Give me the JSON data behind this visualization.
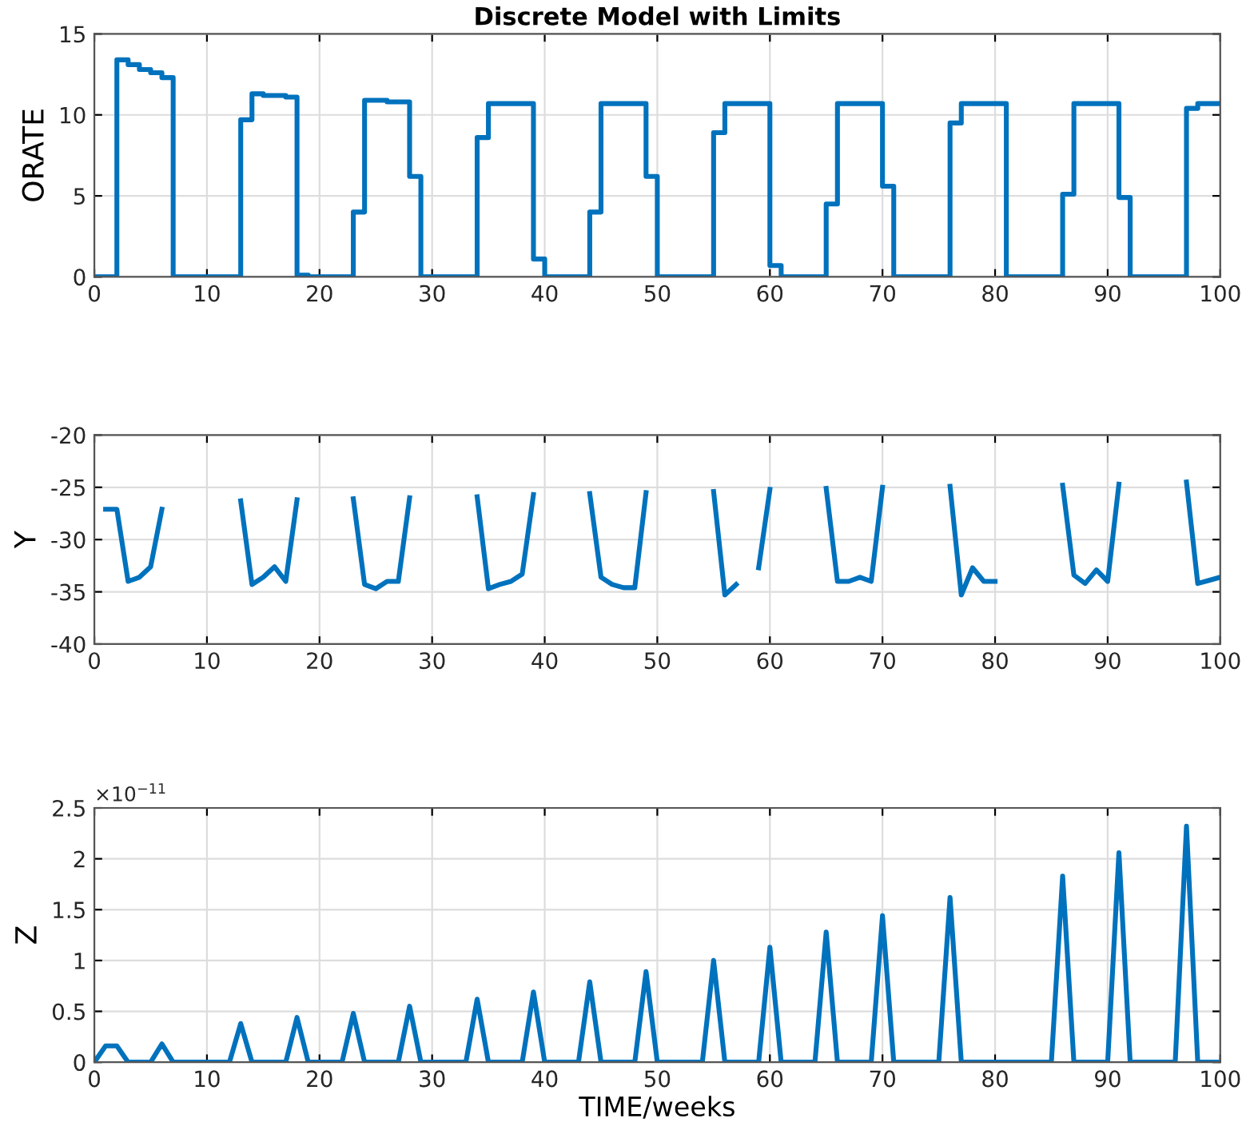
{
  "chart_data": [
    {
      "type": "step",
      "title": "Discrete Model with Limits",
      "ylabel": "ORATE",
      "x": [
        0,
        2,
        3,
        4,
        5,
        6,
        7,
        13,
        14,
        15,
        16,
        17,
        18,
        19,
        23,
        24,
        25,
        26,
        27,
        28,
        29,
        34,
        35,
        39,
        40,
        44,
        45,
        49,
        50,
        55,
        56,
        60,
        61,
        65,
        66,
        70,
        71,
        76,
        77,
        81,
        86,
        87,
        91,
        92,
        97,
        98,
        100
      ],
      "series": [
        {
          "color": "#0072bd",
          "values": [
            0,
            13.4,
            13.1,
            12.8,
            12.6,
            12.3,
            0,
            9.7,
            11.3,
            11.2,
            11.2,
            11.1,
            0.1,
            0,
            4.0,
            10.9,
            10.9,
            10.8,
            10.8,
            6.2,
            0,
            8.6,
            10.7,
            1.1,
            0,
            4.0,
            10.7,
            6.2,
            0,
            8.9,
            10.7,
            0.7,
            0,
            4.5,
            10.7,
            5.6,
            0,
            9.5,
            10.7,
            0,
            5.1,
            10.7,
            4.9,
            0,
            10.4,
            10.7,
            10.7
          ]
        }
      ],
      "xlim": [
        0,
        100
      ],
      "xticks": [
        0,
        10,
        20,
        30,
        40,
        50,
        60,
        70,
        80,
        90,
        100
      ],
      "ylim": [
        0,
        15
      ],
      "yticks": [
        0,
        5,
        10,
        15
      ],
      "grid": true
    },
    {
      "type": "line",
      "ylabel": "Y",
      "x": [
        1,
        2,
        3,
        4,
        5,
        6,
        7,
        8,
        9,
        10,
        11,
        12,
        13,
        14,
        15,
        16,
        17,
        18,
        19,
        20,
        21,
        22,
        23,
        24,
        25,
        26,
        27,
        28,
        29,
        30,
        31,
        32,
        33,
        34,
        35,
        36,
        37,
        38,
        39,
        40,
        41,
        42,
        43,
        44,
        45,
        46,
        47,
        48,
        49,
        50,
        51,
        52,
        53,
        54,
        55,
        56,
        57,
        58,
        59,
        60,
        61,
        62,
        63,
        64,
        65,
        66,
        67,
        68,
        69,
        70,
        71,
        72,
        73,
        74,
        75,
        76,
        77,
        78,
        79,
        80,
        81,
        82,
        83,
        84,
        85,
        86,
        87,
        88,
        89,
        90,
        91,
        92,
        93,
        94,
        95,
        96,
        97,
        98,
        99,
        100
      ],
      "series": [
        {
          "color": "#0072bd",
          "values": [
            -27.1,
            -27.1,
            -34.0,
            -33.6,
            -32.6,
            -27.1,
            null,
            null,
            null,
            null,
            null,
            null,
            -26.3,
            -34.3,
            -33.6,
            -32.6,
            -34.0,
            -26.2,
            null,
            null,
            null,
            null,
            -26.1,
            -34.3,
            -34.7,
            -34.0,
            -34.0,
            -26.0,
            null,
            null,
            null,
            null,
            null,
            -25.9,
            -34.7,
            -34.3,
            -34.0,
            -33.3,
            -25.7,
            null,
            null,
            null,
            null,
            -25.6,
            -33.6,
            -34.3,
            -34.6,
            -34.6,
            -25.5,
            null,
            null,
            null,
            null,
            null,
            -25.4,
            -35.3,
            -34.3,
            null,
            -32.7,
            -25.2,
            null,
            null,
            null,
            null,
            -25.1,
            -34.0,
            -34.0,
            -33.6,
            -34.0,
            -25.0,
            null,
            null,
            null,
            null,
            null,
            -24.9,
            -35.3,
            -32.7,
            -34.0,
            -34.0,
            null,
            null,
            null,
            null,
            null,
            -24.8,
            -33.4,
            -34.2,
            -32.9,
            -34.0,
            -24.7,
            null,
            null,
            null,
            null,
            null,
            -24.5,
            -34.2,
            -33.9,
            -33.6
          ]
        }
      ],
      "xlim": [
        0,
        100
      ],
      "xticks": [
        0,
        10,
        20,
        30,
        40,
        50,
        60,
        70,
        80,
        90,
        100
      ],
      "ylim": [
        -40,
        -20
      ],
      "yticks": [
        -40,
        -35,
        -30,
        -25,
        -20
      ],
      "grid": true
    },
    {
      "type": "line",
      "ylabel": "Z",
      "xlabel": "TIME/weeks",
      "annotations": [
        "×10$^{−11}$"
      ],
      "x": [
        0,
        1,
        2,
        3,
        4,
        5,
        6,
        7,
        8,
        9,
        10,
        11,
        12,
        13,
        14,
        15,
        16,
        17,
        18,
        19,
        20,
        21,
        22,
        23,
        24,
        25,
        26,
        27,
        28,
        29,
        30,
        31,
        32,
        33,
        34,
        35,
        36,
        37,
        38,
        39,
        40,
        41,
        42,
        43,
        44,
        45,
        46,
        47,
        48,
        49,
        50,
        51,
        52,
        53,
        54,
        55,
        56,
        57,
        58,
        59,
        60,
        61,
        62,
        63,
        64,
        65,
        66,
        67,
        68,
        69,
        70,
        71,
        72,
        73,
        74,
        75,
        76,
        77,
        78,
        79,
        80,
        81,
        82,
        83,
        84,
        85,
        86,
        87,
        88,
        89,
        90,
        91,
        92,
        93,
        94,
        95,
        96,
        97,
        98,
        99,
        100
      ],
      "series": [
        {
          "color": "#0072bd",
          "values": [
            0,
            0.16,
            0.16,
            0,
            0,
            0,
            0.18,
            0,
            0,
            0,
            0,
            0,
            0,
            0.38,
            0,
            0,
            0,
            0,
            0.44,
            0,
            0,
            0,
            0,
            0.48,
            0,
            0,
            0,
            0,
            0.55,
            0,
            0,
            0,
            0,
            0,
            0.62,
            0,
            0,
            0,
            0,
            0.69,
            0,
            0,
            0,
            0,
            0.79,
            0,
            0,
            0,
            0,
            0.89,
            0,
            0,
            0,
            0,
            0,
            1.0,
            0,
            0,
            0,
            0,
            1.13,
            0,
            0,
            0,
            0,
            1.28,
            0,
            0,
            0,
            0,
            1.44,
            0,
            0,
            0,
            0,
            0,
            1.62,
            0,
            0,
            0,
            0,
            0,
            0,
            0,
            0,
            0,
            1.83,
            0,
            0,
            0,
            0,
            2.06,
            0,
            0,
            0,
            0,
            0,
            2.32,
            0,
            0,
            0
          ]
        }
      ],
      "xlim": [
        0,
        100
      ],
      "xticks": [
        0,
        10,
        20,
        30,
        40,
        50,
        60,
        70,
        80,
        90,
        100
      ],
      "ylim": [
        0,
        2.5
      ],
      "yticks": [
        0,
        0.5,
        1,
        1.5,
        2,
        2.5
      ],
      "grid": true
    }
  ]
}
